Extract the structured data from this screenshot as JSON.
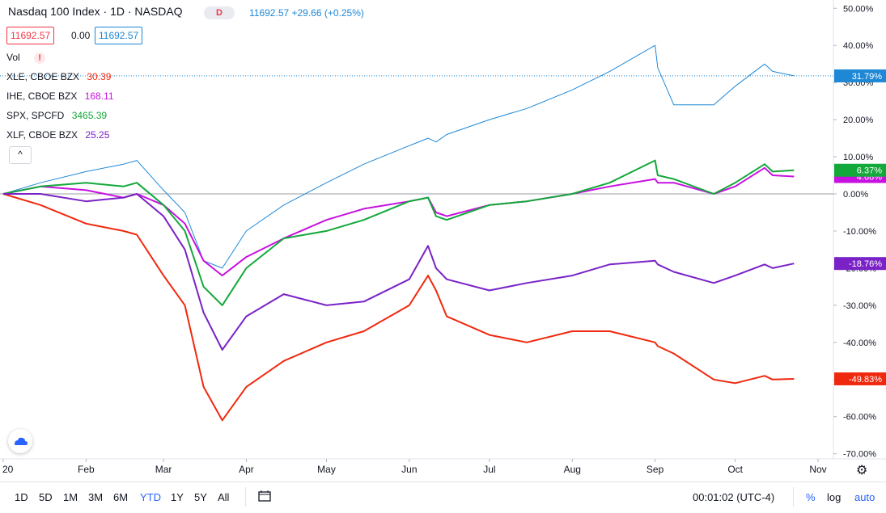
{
  "header": {
    "title": "Nasdaq 100 Index · 1D · NASDAQ",
    "d_badge": "D",
    "price_text": "11692.57 +29.66 (+0.25%)",
    "box1": "11692.57",
    "box_mid": "0.00",
    "box2": "11692.57"
  },
  "legend": {
    "vol_label": "Vol",
    "vol_icon": "warning-icon",
    "items": [
      {
        "name": "XLE, CBOE BZX",
        "value": "30.39",
        "color": "#f0290e"
      },
      {
        "name": "IHE, CBOE BZX",
        "value": "168.11",
        "color": "#c711e0"
      },
      {
        "name": "SPX, SPCFD",
        "value": "3465.39",
        "color": "#13a83a"
      },
      {
        "name": "XLF, CBOE BZX",
        "value": "25.25",
        "color": "#7a22c7"
      }
    ],
    "collapse_icon": "^"
  },
  "toolbar": {
    "ranges": [
      "1D",
      "5D",
      "1M",
      "3M",
      "6M",
      "YTD",
      "1Y",
      "5Y",
      "All"
    ],
    "active_range": "YTD",
    "compare_icon": "calendar-compare-icon",
    "clock": "00:01:02 (UTC-4)",
    "percent": "%",
    "log": "log",
    "auto": "auto",
    "settings_icon": "gear-icon"
  },
  "chart_data": {
    "type": "line",
    "title": "",
    "xlabel": "",
    "ylabel": "",
    "x_ticks": [
      "20",
      "Feb",
      "Mar",
      "Apr",
      "May",
      "Jun",
      "Jul",
      "Aug",
      "Sep",
      "Oct",
      "Nov"
    ],
    "y_ticks": [
      "50.00%",
      "40.00%",
      "30.00%",
      "20.00%",
      "10.00%",
      "0.00%",
      "-10.00%",
      "-20.00%",
      "-30.00%",
      "-40.00%",
      "-50.00%",
      "-60.00%",
      "-70.00%"
    ],
    "ylim": [
      -70,
      50
    ],
    "x": [
      "Jan 1",
      "Jan 15",
      "Feb 1",
      "Feb 15",
      "Feb 20",
      "Mar 1",
      "Mar 9",
      "Mar 16",
      "Mar 23",
      "Apr 1",
      "Apr 15",
      "May 1",
      "May 15",
      "Jun 1",
      "Jun 8",
      "Jun 11",
      "Jun 15",
      "Jul 1",
      "Jul 15",
      "Aug 1",
      "Aug 15",
      "Sep 1",
      "Sep 2",
      "Sep 8",
      "Sep 23",
      "Oct 1",
      "Oct 12",
      "Oct 15",
      "Oct 23"
    ],
    "series": [
      {
        "name": "Nasdaq 100 Index",
        "color": "#1e88d6",
        "last_label": "31.79%",
        "values": [
          0,
          3,
          6,
          8,
          9,
          1,
          -5,
          -18,
          -20,
          -10,
          -3,
          3,
          8,
          13,
          15,
          14,
          16,
          20,
          23,
          28,
          33,
          40,
          34,
          24,
          24,
          29,
          35,
          33,
          31.79
        ]
      },
      {
        "name": "XLE, CBOE BZX",
        "color": "#f0290e",
        "last_label": "-49.83%",
        "values": [
          0,
          -3,
          -8,
          -10,
          -11,
          -22,
          -30,
          -52,
          -61,
          -52,
          -45,
          -40,
          -37,
          -30,
          -22,
          -26,
          -33,
          -38,
          -40,
          -37,
          -37,
          -40,
          -41,
          -43,
          -50,
          -51,
          -49,
          -50,
          -49.83
        ]
      },
      {
        "name": "IHE, CBOE BZX",
        "color": "#c711e0",
        "last_label": "4.68%",
        "values": [
          0,
          2,
          1,
          -1,
          0,
          -3,
          -8,
          -18,
          -22,
          -17,
          -12,
          -7,
          -4,
          -2,
          -1,
          -5,
          -6,
          -3,
          -2,
          0,
          2,
          4,
          3,
          3,
          0,
          2,
          7,
          5,
          4.68
        ]
      },
      {
        "name": "SPX, SPCFD",
        "color": "#13a83a",
        "last_label": "6.37%",
        "values": [
          0,
          2,
          3,
          2,
          3,
          -3,
          -10,
          -25,
          -30,
          -20,
          -12,
          -10,
          -7,
          -2,
          -1,
          -6,
          -7,
          -3,
          -2,
          0,
          3,
          9,
          5,
          4,
          0,
          3,
          8,
          6,
          6.37
        ]
      },
      {
        "name": "XLF, CBOE BZX",
        "color": "#7a22c7",
        "last_label": "-18.76%",
        "values": [
          0,
          0,
          -2,
          -1,
          0,
          -6,
          -15,
          -32,
          -42,
          -33,
          -27,
          -30,
          -29,
          -23,
          -14,
          -20,
          -23,
          -26,
          -24,
          -22,
          -19,
          -18,
          -19,
          -21,
          -24,
          -22,
          -19,
          -20,
          -18.76
        ]
      }
    ],
    "grid": false,
    "legend": "top-left"
  }
}
